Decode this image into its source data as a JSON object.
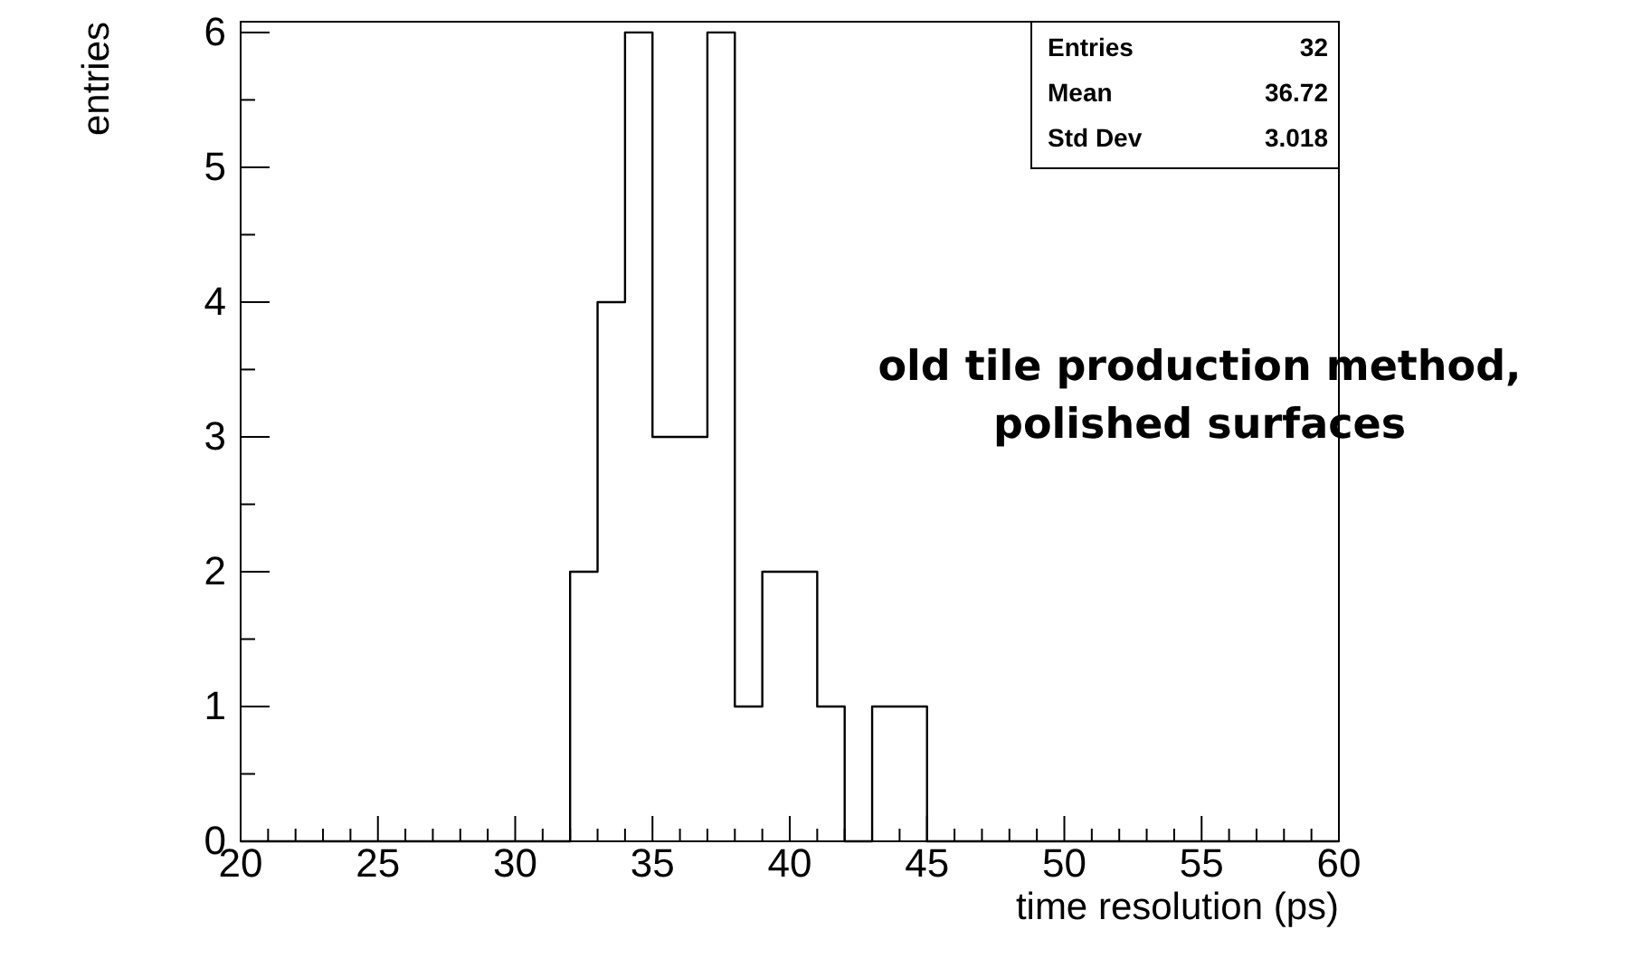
{
  "chart_data": {
    "type": "histogram",
    "bins": [
      20,
      21,
      22,
      23,
      24,
      25,
      26,
      27,
      28,
      29,
      30,
      31,
      32,
      33,
      34,
      35,
      36,
      37,
      38,
      39,
      40,
      41,
      42,
      43,
      44,
      45,
      46,
      47,
      48,
      49,
      50,
      51,
      52,
      53,
      54,
      55,
      56,
      57,
      58,
      59,
      60
    ],
    "values": [
      0,
      0,
      0,
      0,
      0,
      0,
      0,
      0,
      0,
      0,
      0,
      0,
      2,
      4,
      6,
      3,
      3,
      6,
      1,
      2,
      2,
      1,
      0,
      1,
      1,
      0,
      0,
      0,
      0,
      0,
      0,
      0,
      0,
      0,
      0,
      0,
      0,
      0,
      0,
      0
    ],
    "color": "#000000",
    "xlabel": "time resolution (ps)",
    "ylabel": "entries",
    "xlim": [
      20,
      60
    ],
    "xticks": [
      20,
      25,
      30,
      35,
      40,
      45,
      50,
      55,
      60
    ],
    "ylim": [
      0,
      6.08
    ],
    "yticks": [
      0,
      1,
      2,
      3,
      4,
      5,
      6
    ],
    "grid": false,
    "annotations": [
      "Entries",
      "32",
      "Mean",
      "36.72",
      "Std Dev",
      "3.018",
      "old tile production method, polished surfaces"
    ]
  }
}
